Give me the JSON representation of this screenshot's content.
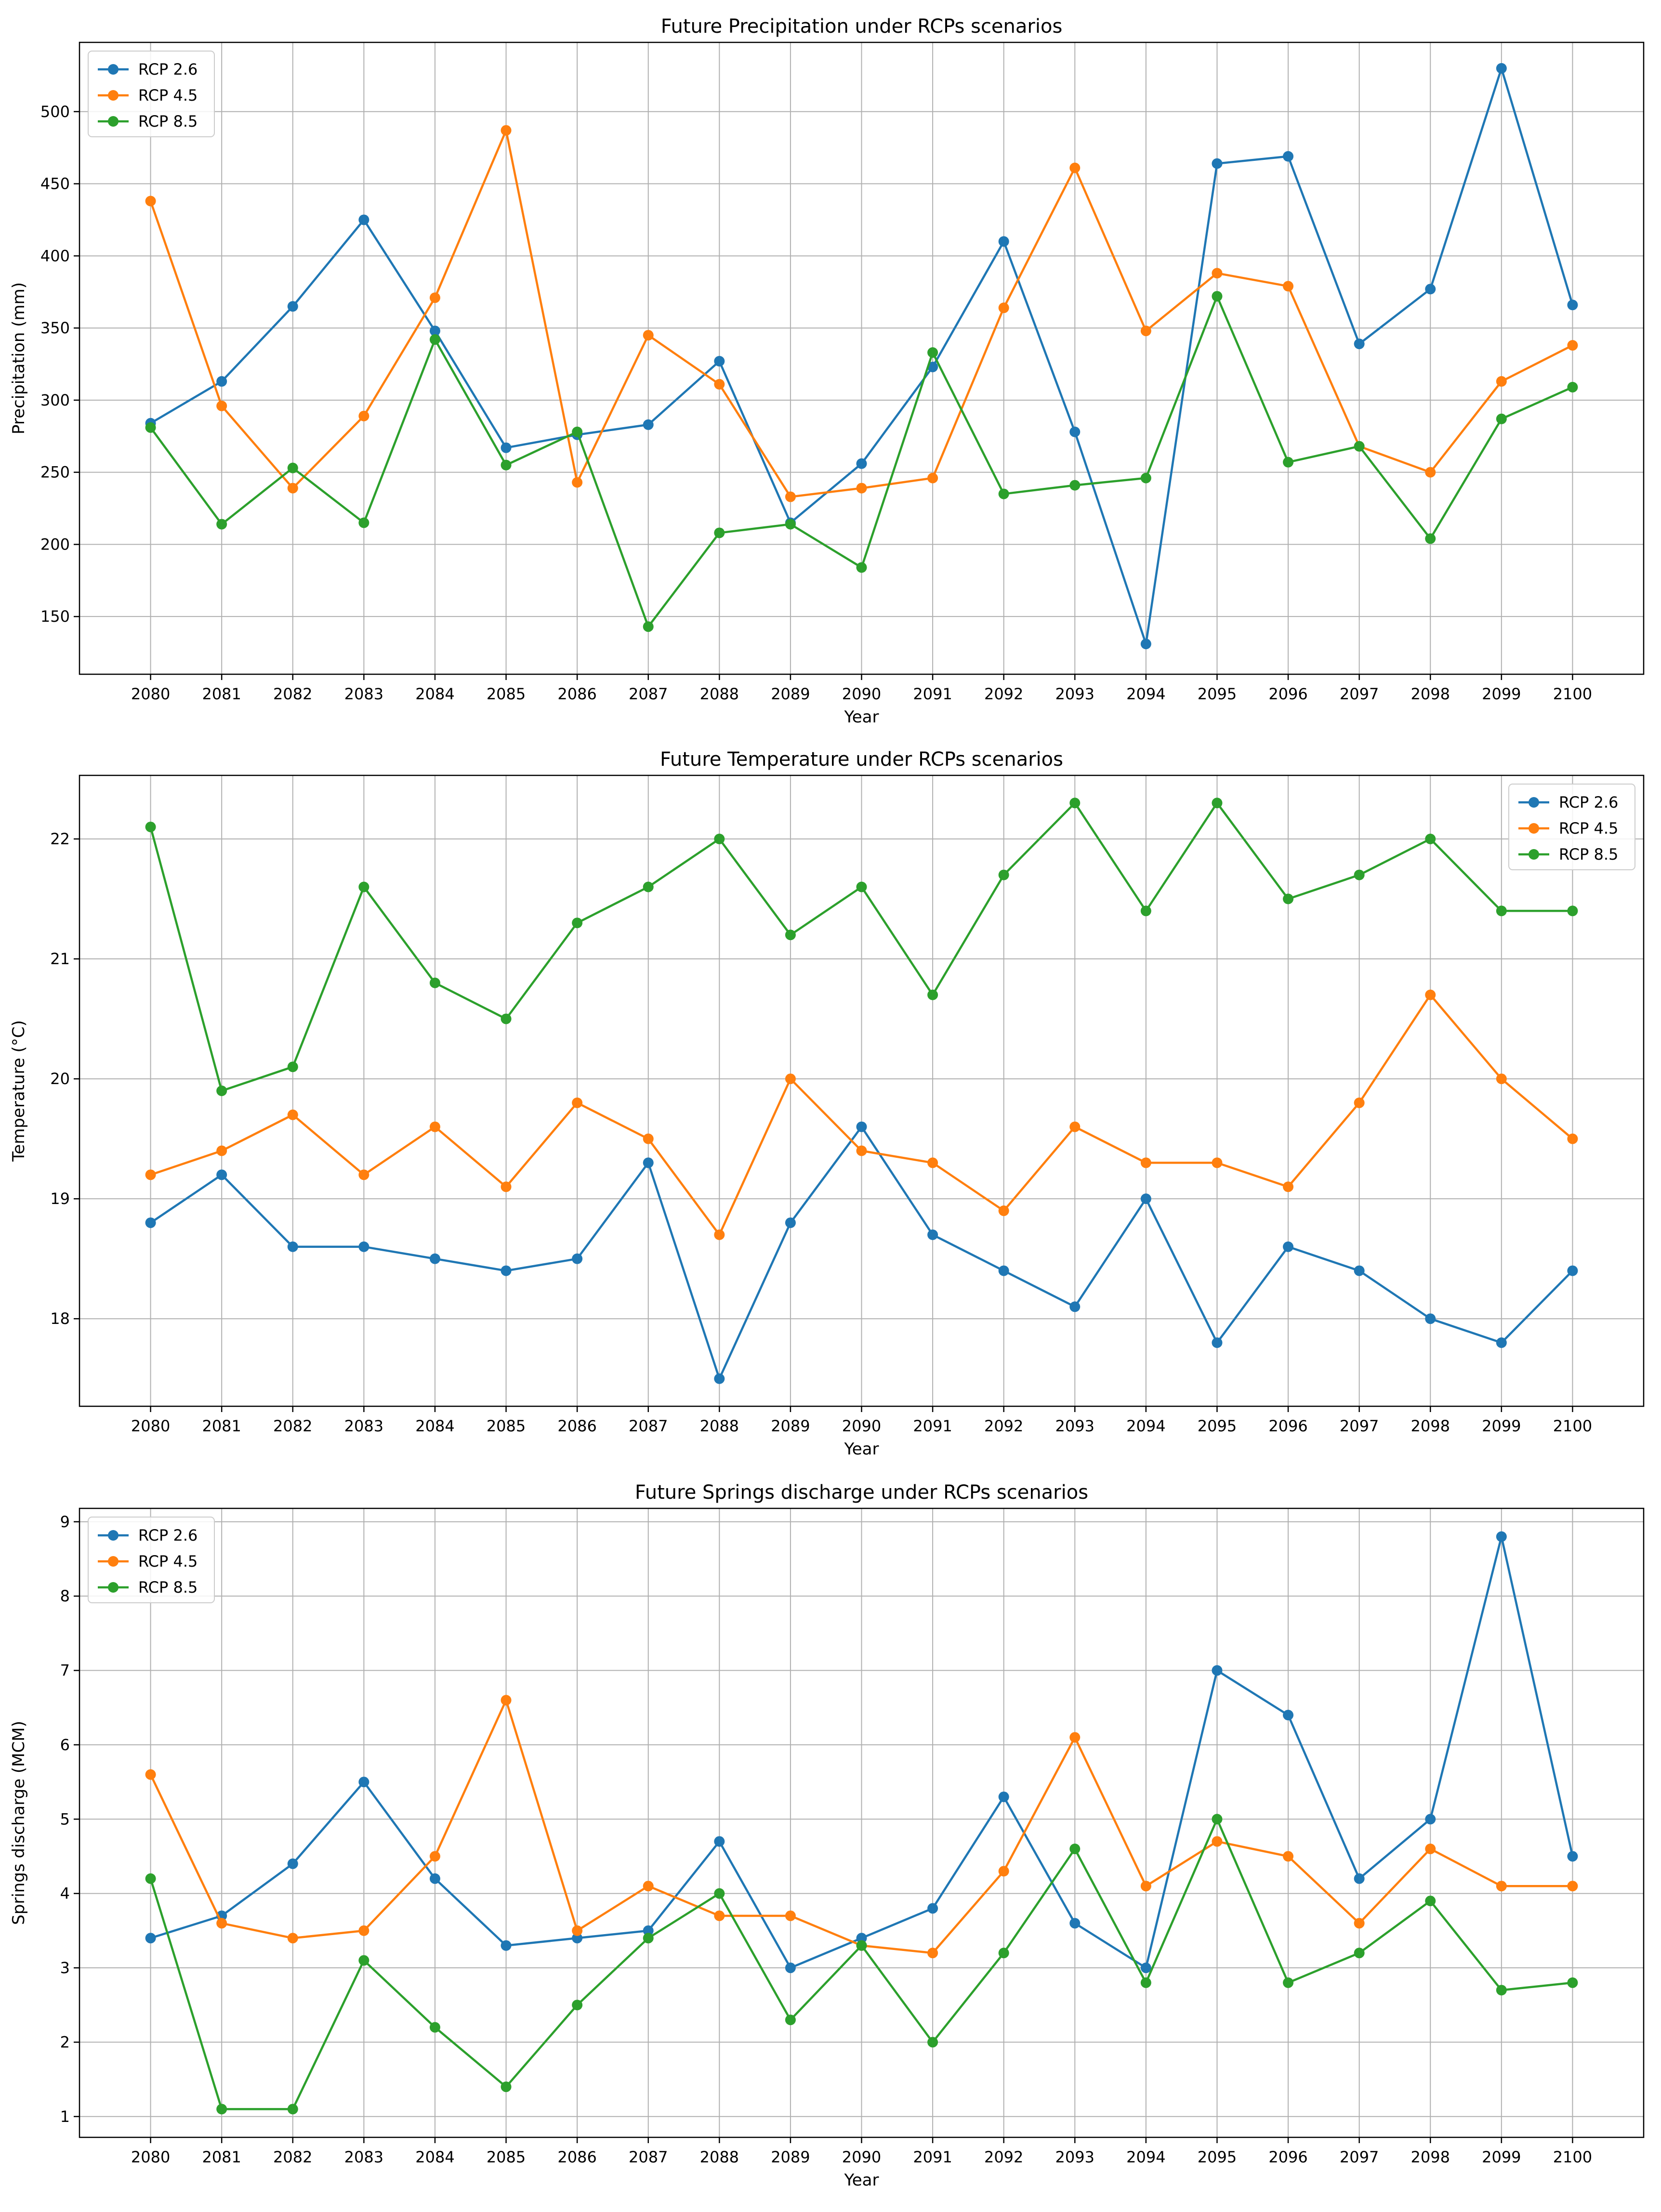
{
  "colors": {
    "rcp26": "#1f77b4",
    "rcp45": "#ff7f0e",
    "rcp85": "#2ca02c",
    "grid": "#b0b0b0",
    "frame": "#000000",
    "legend_border": "#cccccc"
  },
  "chart_data": [
    {
      "type": "line",
      "title": "Future Precipitation under RCPs scenarios",
      "xlabel": "Year",
      "ylabel": "Precipitation (mm)",
      "legend_position": "top-left",
      "grid": true,
      "categories": [
        "2080",
        "2081",
        "2082",
        "2083",
        "2084",
        "2085",
        "2086",
        "2087",
        "2088",
        "2089",
        "2090",
        "2091",
        "2092",
        "2093",
        "2094",
        "2095",
        "2096",
        "2097",
        "2098",
        "2099",
        "2100"
      ],
      "ylim": [
        110,
        548
      ],
      "yticks": [
        150,
        200,
        250,
        300,
        350,
        400,
        450,
        500
      ],
      "series": [
        {
          "name": "RCP 2.6",
          "color_key": "rcp26",
          "values": [
            284,
            313,
            365,
            425,
            348,
            267,
            276,
            283,
            327,
            215,
            256,
            323,
            410,
            278,
            131,
            464,
            469,
            339,
            377,
            530,
            366
          ]
        },
        {
          "name": "RCP 4.5",
          "color_key": "rcp45",
          "values": [
            438,
            296,
            239,
            289,
            371,
            487,
            243,
            345,
            311,
            233,
            239,
            246,
            364,
            461,
            348,
            388,
            379,
            268,
            250,
            313,
            338
          ]
        },
        {
          "name": "RCP 8.5",
          "color_key": "rcp85",
          "values": [
            281,
            214,
            253,
            215,
            342,
            255,
            278,
            143,
            208,
            214,
            184,
            333,
            235,
            241,
            246,
            372,
            257,
            268,
            204,
            287,
            309
          ]
        }
      ]
    },
    {
      "type": "line",
      "title": "Future Temperature under RCPs scenarios",
      "xlabel": "Year",
      "ylabel": "Temperature (°C)",
      "legend_position": "top-right",
      "grid": true,
      "categories": [
        "2080",
        "2081",
        "2082",
        "2083",
        "2084",
        "2085",
        "2086",
        "2087",
        "2088",
        "2089",
        "2090",
        "2091",
        "2092",
        "2093",
        "2094",
        "2095",
        "2096",
        "2097",
        "2098",
        "2099",
        "2100"
      ],
      "ylim": [
        17.27,
        22.53
      ],
      "yticks": [
        18,
        19,
        20,
        21,
        22
      ],
      "series": [
        {
          "name": "RCP 2.6",
          "color_key": "rcp26",
          "values": [
            18.8,
            19.2,
            18.6,
            18.6,
            18.5,
            18.4,
            18.5,
            19.3,
            17.5,
            18.8,
            19.6,
            18.7,
            18.4,
            18.1,
            19.0,
            17.8,
            18.6,
            18.4,
            18.0,
            17.8,
            18.4
          ]
        },
        {
          "name": "RCP 4.5",
          "color_key": "rcp45",
          "values": [
            19.2,
            19.4,
            19.7,
            19.2,
            19.6,
            19.1,
            19.8,
            19.5,
            18.7,
            20.0,
            19.4,
            19.3,
            18.9,
            19.6,
            19.3,
            19.3,
            19.1,
            19.8,
            20.7,
            20.0,
            19.5
          ]
        },
        {
          "name": "RCP 8.5",
          "color_key": "rcp85",
          "values": [
            22.1,
            19.9,
            20.1,
            21.6,
            20.8,
            20.5,
            21.3,
            21.6,
            22.0,
            21.2,
            21.6,
            20.7,
            21.7,
            22.3,
            21.4,
            22.3,
            21.5,
            21.7,
            22.0,
            21.4,
            21.4
          ]
        }
      ]
    },
    {
      "type": "line",
      "title": "Future Springs discharge under RCPs scenarios",
      "xlabel": "Year",
      "ylabel": "Springs discharge (MCM)",
      "legend_position": "top-left",
      "grid": true,
      "categories": [
        "2080",
        "2081",
        "2082",
        "2083",
        "2084",
        "2085",
        "2086",
        "2087",
        "2088",
        "2089",
        "2090",
        "2091",
        "2092",
        "2093",
        "2094",
        "2095",
        "2096",
        "2097",
        "2098",
        "2099",
        "2100"
      ],
      "ylim": [
        0.72,
        9.18
      ],
      "yticks": [
        1,
        2,
        3,
        4,
        5,
        6,
        7,
        8,
        9
      ],
      "series": [
        {
          "name": "RCP 2.6",
          "color_key": "rcp26",
          "values": [
            3.4,
            3.7,
            4.4,
            5.5,
            4.2,
            3.3,
            3.4,
            3.5,
            4.7,
            3.0,
            3.4,
            3.8,
            5.3,
            3.6,
            3.0,
            7.0,
            6.4,
            4.2,
            5.0,
            8.8,
            4.5
          ]
        },
        {
          "name": "RCP 4.5",
          "color_key": "rcp45",
          "values": [
            5.6,
            3.6,
            3.4,
            3.5,
            4.5,
            6.6,
            3.5,
            4.1,
            3.7,
            3.7,
            3.3,
            3.2,
            4.3,
            6.1,
            4.1,
            4.7,
            4.5,
            3.6,
            4.6,
            4.1,
            4.1
          ]
        },
        {
          "name": "RCP 8.5",
          "color_key": "rcp85",
          "values": [
            4.2,
            1.1,
            1.1,
            3.1,
            2.2,
            1.4,
            2.5,
            3.4,
            4.0,
            2.3,
            3.3,
            2.0,
            3.2,
            4.6,
            2.8,
            5.0,
            2.8,
            3.2,
            3.9,
            2.7,
            2.8
          ]
        }
      ]
    }
  ]
}
